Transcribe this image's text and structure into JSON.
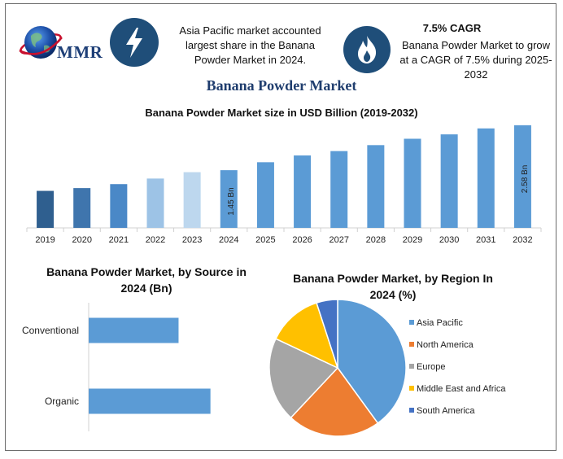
{
  "header": {
    "logo_text": "MMR",
    "share_text": "Asia Pacific market accounted largest share in the Banana Powder Market in 2024.",
    "cagr_title": "7.5% CAGR",
    "cagr_text": "Banana Powder Market to grow at a CAGR of 7.5% during 2025-2032",
    "icons": [
      "globe-icon",
      "lightning-bolt-icon",
      "flame-icon"
    ],
    "badge_color": "#1f4e79"
  },
  "title": "Banana Powder Market",
  "chart_data": [
    {
      "type": "bar",
      "title": "Banana Powder Market size in USD Billion (2019-2032)",
      "categories": [
        "2019",
        "2020",
        "2021",
        "2022",
        "2023",
        "2024",
        "2025",
        "2026",
        "2027",
        "2028",
        "2029",
        "2030",
        "2031",
        "2032"
      ],
      "values": [
        0.93,
        1.0,
        1.1,
        1.24,
        1.4,
        1.45,
        1.65,
        1.82,
        1.93,
        2.08,
        2.24,
        2.35,
        2.5,
        2.58
      ],
      "bar_colors": [
        "#2f5f8f",
        "#3f75ad",
        "#4a88c7",
        "#9dc3e6",
        "#bdd7ee",
        "#5b9bd5",
        "#5b9bd5",
        "#5b9bd5",
        "#5b9bd5",
        "#5b9bd5",
        "#5b9bd5",
        "#5b9bd5",
        "#5b9bd5",
        "#5b9bd5"
      ],
      "data_labels": [
        {
          "category": "2024",
          "text": "1.45 Bn"
        },
        {
          "category": "2032",
          "text": "2.58 Bn"
        }
      ],
      "ylim": [
        0,
        2.7
      ],
      "grid": false
    },
    {
      "type": "bar",
      "orientation": "horizontal",
      "title": "Banana Powder Market, by Source in 2024 (Bn)",
      "categories": [
        "Conventional",
        "Organic"
      ],
      "values": [
        0.62,
        0.84
      ],
      "xlim": [
        0,
        1.1
      ],
      "color": "#5b9bd5",
      "grid": false
    },
    {
      "type": "pie",
      "title": "Banana Powder Market, by Region In 2024 (%)",
      "labels": [
        "Asia Pacific",
        "North America",
        "Europe",
        "Middle East and Africa",
        "South America"
      ],
      "values": [
        40,
        22,
        20,
        13,
        5
      ],
      "colors": [
        "#5b9bd5",
        "#ed7d31",
        "#a5a5a5",
        "#ffc000",
        "#4472c4"
      ],
      "legend": "right"
    }
  ]
}
